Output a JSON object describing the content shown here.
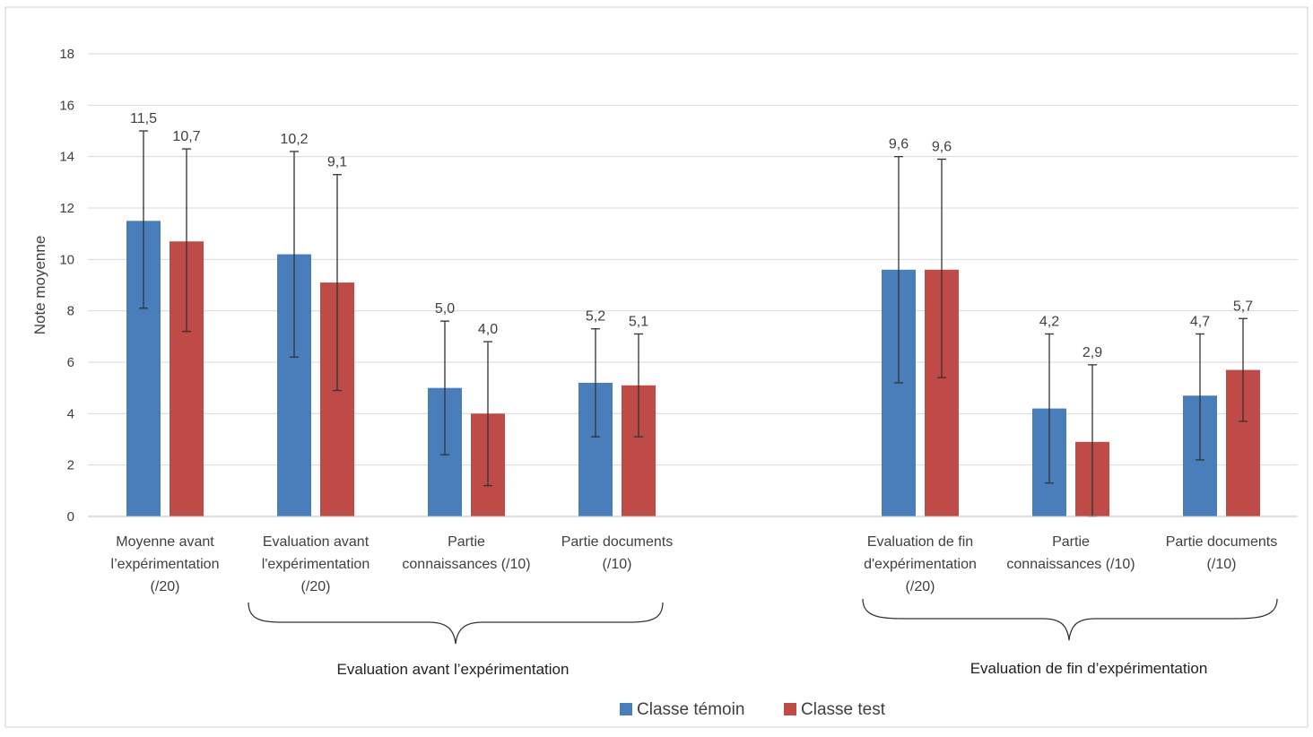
{
  "chart_data": {
    "type": "bar",
    "ylabel": "Note moyenne",
    "ylim": [
      0,
      18
    ],
    "yticks": [
      0,
      2,
      4,
      6,
      8,
      10,
      12,
      14,
      16,
      18
    ],
    "grid": true,
    "legend_position": "bottom",
    "categories": [
      [
        "Moyenne avant",
        "l’expérimentation",
        "(/20)"
      ],
      [
        "Evaluation avant",
        "l'expérimentation",
        "(/20)"
      ],
      [
        "Partie",
        "connaissances (/10)"
      ],
      [
        "Partie documents",
        "(/10)"
      ],
      [
        "Evaluation de fin",
        "d'expérimentation",
        "(/20)"
      ],
      [
        "Partie",
        "connaissances (/10)"
      ],
      [
        "Partie documents",
        "(/10)"
      ]
    ],
    "groups": [
      {
        "label": "Evaluation avant l’expérimentation",
        "categories": [
          1,
          2,
          3
        ]
      },
      {
        "label": "Evaluation de fin d’expérimentation",
        "categories": [
          4,
          5,
          6
        ]
      }
    ],
    "series": [
      {
        "name": "Classe témoin",
        "color": "#4a7ebb",
        "values": [
          11.5,
          10.2,
          5.0,
          5.2,
          9.6,
          4.2,
          4.7
        ],
        "labels": [
          "11,5",
          "10,2",
          "5,0",
          "5,2",
          "9,6",
          "4,2",
          "4,7"
        ],
        "err_low": [
          8.1,
          6.2,
          2.4,
          3.1,
          5.2,
          1.3,
          2.2
        ],
        "err_high": [
          15.0,
          14.2,
          7.6,
          7.3,
          14.0,
          7.1,
          7.1
        ]
      },
      {
        "name": "Classe test",
        "color": "#be4b48",
        "values": [
          10.7,
          9.1,
          4.0,
          5.1,
          9.6,
          2.9,
          5.7
        ],
        "labels": [
          "10,7",
          "9,1",
          "4,0",
          "5,1",
          "9,6",
          "2,9",
          "5,7"
        ],
        "err_low": [
          7.2,
          4.9,
          1.2,
          3.1,
          5.4,
          0.0,
          3.7
        ],
        "err_high": [
          14.3,
          13.3,
          6.8,
          7.1,
          13.9,
          5.9,
          7.7
        ]
      }
    ]
  }
}
